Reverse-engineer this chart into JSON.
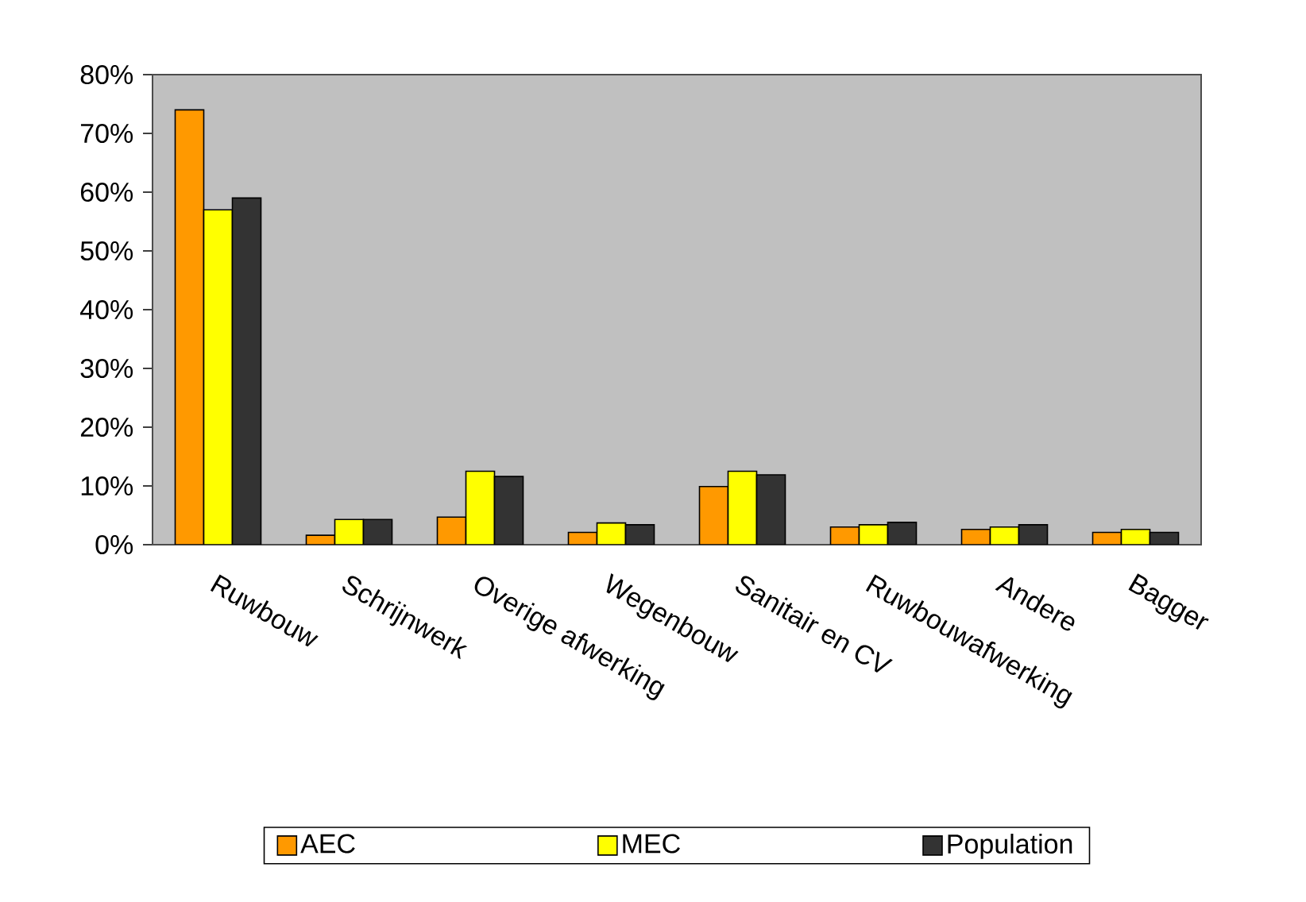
{
  "chart_data": {
    "type": "bar",
    "categories": [
      "Ruwbouw",
      "Schrijnwerk",
      "Overige afwerking",
      "Wegenbouw",
      "Sanitair en CV",
      "Ruwbouwafwerking",
      "Andere",
      "Bagger"
    ],
    "series": [
      {
        "name": "AEC",
        "color": "#ff9900",
        "values": [
          74,
          1.6,
          4.7,
          2.1,
          9.9,
          3.0,
          2.6,
          2.1
        ]
      },
      {
        "name": "MEC",
        "color": "#ffff00",
        "values": [
          57,
          4.3,
          12.5,
          3.7,
          12.5,
          3.4,
          3.0,
          2.6
        ]
      },
      {
        "name": "Population",
        "color": "#333333",
        "values": [
          59,
          4.3,
          11.6,
          3.4,
          11.9,
          3.8,
          3.4,
          2.1
        ]
      }
    ],
    "ylim": [
      0,
      80
    ],
    "yticks": [
      {
        "value": 0,
        "label": "0%"
      },
      {
        "value": 10,
        "label": "10%"
      },
      {
        "value": 20,
        "label": "20%"
      },
      {
        "value": 30,
        "label": "30%"
      },
      {
        "value": 40,
        "label": "40%"
      },
      {
        "value": 50,
        "label": "50%"
      },
      {
        "value": 60,
        "label": "60%"
      },
      {
        "value": 70,
        "label": "70%"
      },
      {
        "value": 80,
        "label": "80%"
      }
    ],
    "grid": false,
    "legend": "bottom"
  }
}
